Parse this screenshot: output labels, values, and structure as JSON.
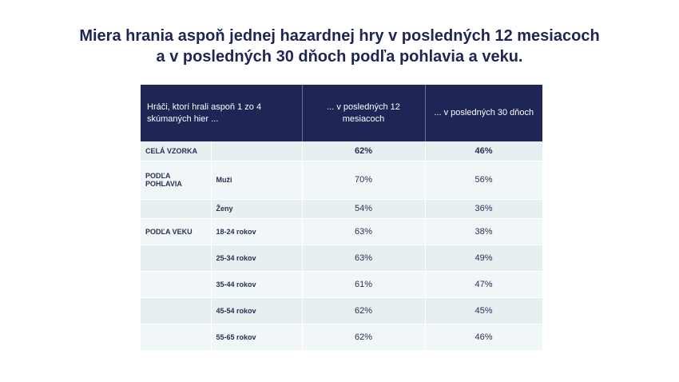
{
  "title": {
    "line1": "Miera hrania aspoň jednej hazardnej hry v posledných 12 mesiacoch",
    "line2": "a v posledných 30 dňoch podľa pohlavia a veku."
  },
  "table": {
    "headers": {
      "col1": "Hráči, ktorí hrali aspoň 1 zo 4 skúmaných hier ...",
      "col2": "... v posledných 12 mesiacoch",
      "col3": "... v posledných 30 dňoch"
    },
    "rows": [
      {
        "category": "CELÁ VZORKA",
        "sub": "",
        "m12": "62%",
        "d30": "46%"
      },
      {
        "category": "PODĽA POHLAVIA",
        "sub": "Muži",
        "m12": "70%",
        "d30": "56%"
      },
      {
        "category": "",
        "sub": "Ženy",
        "m12": "54%",
        "d30": "36%"
      },
      {
        "category": "PODĽA VEKU",
        "sub": "18-24 rokov",
        "m12": "63%",
        "d30": "38%"
      },
      {
        "category": "",
        "sub": "25-34 rokov",
        "m12": "63%",
        "d30": "49%"
      },
      {
        "category": "",
        "sub": "35-44 rokov",
        "m12": "61%",
        "d30": "47%"
      },
      {
        "category": "",
        "sub": "45-54 rokov",
        "m12": "62%",
        "d30": "45%"
      },
      {
        "category": "",
        "sub": "55-65 rokov",
        "m12": "62%",
        "d30": "46%"
      }
    ]
  },
  "colors": {
    "header_bg": "#1f2555",
    "title": "#1f2555",
    "row_a": "#e6f0f1",
    "row_b": "#f1f7f8"
  }
}
